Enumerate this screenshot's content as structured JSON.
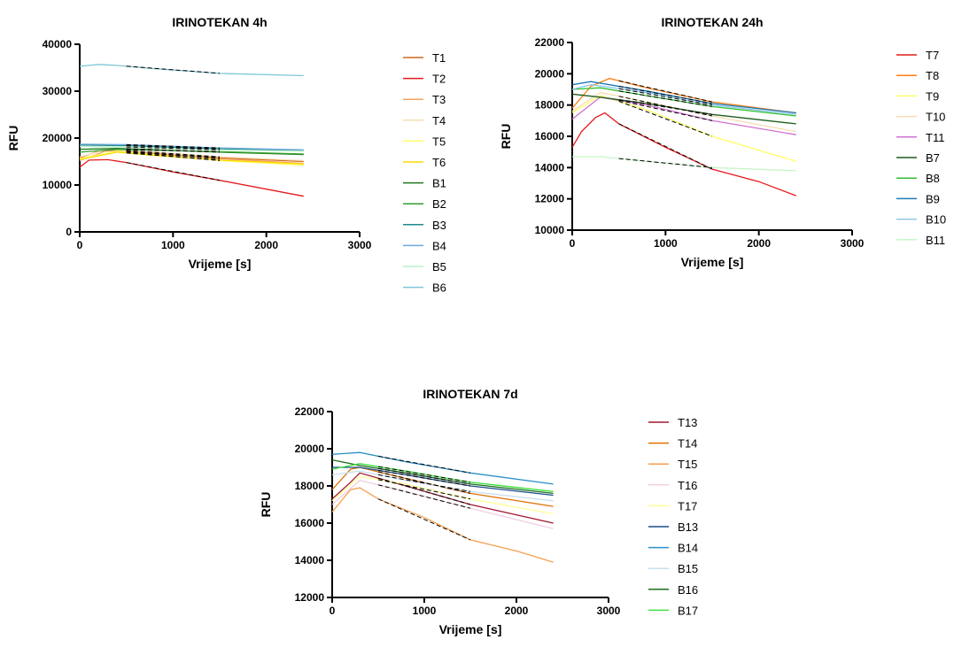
{
  "chart_data": [
    {
      "type": "line",
      "title": "IRINOTEKAN 4h",
      "xlabel": "Vrijeme [s]",
      "ylabel": "RFU",
      "xlim": [
        0,
        3000
      ],
      "ylim": [
        0,
        40000
      ],
      "xticks": [
        "0",
        "1000",
        "2000",
        "3000"
      ],
      "yticks": [
        "0",
        "10000",
        "20000",
        "30000",
        "40000"
      ],
      "legend_position": "right",
      "series": [
        {
          "name": "T1",
          "color": "#d2691e",
          "values": [
            [
              0,
              15800
            ],
            [
              200,
              17200
            ],
            [
              400,
              17300
            ],
            [
              800,
              16600
            ],
            [
              1500,
              15800
            ],
            [
              2400,
              15000
            ]
          ],
          "fit": [
            500,
            1500
          ]
        },
        {
          "name": "T2",
          "color": "#e41a1c",
          "values": [
            [
              0,
              13800
            ],
            [
              100,
              15300
            ],
            [
              300,
              15400
            ],
            [
              500,
              14800
            ],
            [
              1000,
              12800
            ],
            [
              1500,
              11000
            ],
            [
              2400,
              7600
            ]
          ],
          "fit": [
            500,
            1500
          ]
        },
        {
          "name": "T3",
          "color": "#f4a460",
          "values": [
            [
              0,
              15200
            ],
            [
              300,
              17400
            ],
            [
              800,
              16800
            ],
            [
              1500,
              15600
            ],
            [
              2400,
              14600
            ]
          ],
          "fit": [
            500,
            1500
          ]
        },
        {
          "name": "T4",
          "color": "#f5deb3",
          "values": [
            [
              0,
              16000
            ],
            [
              300,
              17600
            ],
            [
              800,
              17000
            ],
            [
              1500,
              16000
            ],
            [
              2400,
              15200
            ]
          ],
          "fit": [
            500,
            1500
          ]
        },
        {
          "name": "T5",
          "color": "#ffff66",
          "values": [
            [
              0,
              15600
            ],
            [
              400,
              17200
            ],
            [
              800,
              16500
            ],
            [
              1500,
              15200
            ],
            [
              2400,
              14200
            ]
          ],
          "fit": [
            500,
            1500
          ]
        },
        {
          "name": "T6",
          "color": "#ffd700",
          "values": [
            [
              0,
              15400
            ],
            [
              400,
              17000
            ],
            [
              800,
              16300
            ],
            [
              1500,
              15300
            ],
            [
              2400,
              14500
            ]
          ],
          "fit": [
            500,
            1500
          ]
        },
        {
          "name": "B1",
          "color": "#1b7a1b",
          "values": [
            [
              0,
              17600
            ],
            [
              400,
              17800
            ],
            [
              1500,
              17000
            ],
            [
              2400,
              16500
            ]
          ],
          "fit": [
            500,
            1500
          ]
        },
        {
          "name": "B2",
          "color": "#33a02c",
          "values": [
            [
              0,
              17000
            ],
            [
              400,
              17600
            ],
            [
              1500,
              17100
            ],
            [
              2400,
              16600
            ]
          ],
          "fit": [
            500,
            1500
          ]
        },
        {
          "name": "B3",
          "color": "#1f8a8a",
          "values": [
            [
              0,
              18500
            ],
            [
              500,
              18400
            ],
            [
              1500,
              17700
            ],
            [
              2400,
              17300
            ]
          ],
          "fit": [
            500,
            1500
          ]
        },
        {
          "name": "B4",
          "color": "#6fa8dc",
          "values": [
            [
              0,
              18700
            ],
            [
              500,
              18600
            ],
            [
              1500,
              17900
            ],
            [
              2400,
              17500
            ]
          ],
          "fit": [
            500,
            1500
          ]
        },
        {
          "name": "B5",
          "color": "#b8f0c8",
          "values": [
            [
              0,
              18200
            ],
            [
              500,
              18100
            ],
            [
              1500,
              17500
            ],
            [
              2400,
              17200
            ]
          ],
          "fit": [
            500,
            1500
          ]
        },
        {
          "name": "B6",
          "color": "#7fc8d8",
          "values": [
            [
              0,
              35300
            ],
            [
              200,
              35700
            ],
            [
              400,
              35500
            ],
            [
              800,
              34800
            ],
            [
              1500,
              33800
            ],
            [
              2400,
              33300
            ]
          ],
          "fit": [
            500,
            1500
          ]
        }
      ]
    },
    {
      "type": "line",
      "title": "IRINOTEKAN 24h",
      "xlabel": "Vrijeme [s]",
      "ylabel": "RFU",
      "xlim": [
        0,
        3000
      ],
      "ylim": [
        10000,
        22000
      ],
      "xticks": [
        "0",
        "1000",
        "2000",
        "3000"
      ],
      "yticks": [
        "10000",
        "12000",
        "14000",
        "16000",
        "18000",
        "20000",
        "22000"
      ],
      "legend_position": "right",
      "series": [
        {
          "name": "T7",
          "color": "#e41a1c",
          "values": [
            [
              0,
              15300
            ],
            [
              100,
              16300
            ],
            [
              250,
              17200
            ],
            [
              350,
              17500
            ],
            [
              500,
              16800
            ],
            [
              1000,
              15300
            ],
            [
              1500,
              13900
            ],
            [
              2000,
              13100
            ],
            [
              2400,
              12200
            ]
          ],
          "fit": [
            500,
            1500
          ]
        },
        {
          "name": "T8",
          "color": "#ff7f0e",
          "values": [
            [
              0,
              17800
            ],
            [
              200,
              19200
            ],
            [
              400,
              19700
            ],
            [
              800,
              19100
            ],
            [
              1500,
              18200
            ],
            [
              2400,
              17500
            ]
          ],
          "fit": [
            500,
            1500
          ]
        },
        {
          "name": "T9",
          "color": "#ffff66",
          "values": [
            [
              0,
              17500
            ],
            [
              300,
              18600
            ],
            [
              800,
              17700
            ],
            [
              1500,
              16000
            ],
            [
              2400,
              14400
            ]
          ],
          "fit": [
            500,
            1500
          ]
        },
        {
          "name": "T10",
          "color": "#f5deb3",
          "values": [
            [
              0,
              17600
            ],
            [
              300,
              18800
            ],
            [
              800,
              18200
            ],
            [
              1500,
              17300
            ],
            [
              2400,
              16300
            ]
          ],
          "fit": [
            500,
            1500
          ]
        },
        {
          "name": "T11",
          "color": "#d070d0",
          "values": [
            [
              0,
              17100
            ],
            [
              300,
              18500
            ],
            [
              800,
              18000
            ],
            [
              1500,
              17000
            ],
            [
              2400,
              16100
            ]
          ],
          "fit": [
            500,
            1500
          ]
        },
        {
          "name": "B7",
          "color": "#1b5e1b",
          "values": [
            [
              0,
              18700
            ],
            [
              300,
              18500
            ],
            [
              800,
              18100
            ],
            [
              1500,
              17400
            ],
            [
              2400,
              16800
            ]
          ],
          "fit": [
            500,
            1500
          ]
        },
        {
          "name": "B8",
          "color": "#33c033",
          "values": [
            [
              0,
              19000
            ],
            [
              300,
              19100
            ],
            [
              800,
              18600
            ],
            [
              1500,
              17900
            ],
            [
              2400,
              17300
            ]
          ],
          "fit": [
            500,
            1500
          ]
        },
        {
          "name": "B9",
          "color": "#1f77b4",
          "values": [
            [
              0,
              19300
            ],
            [
              200,
              19500
            ],
            [
              800,
              18900
            ],
            [
              1500,
              18100
            ],
            [
              2400,
              17500
            ]
          ],
          "fit": [
            500,
            1500
          ]
        },
        {
          "name": "B10",
          "color": "#8cc8e8",
          "values": [
            [
              0,
              19000
            ],
            [
              200,
              19300
            ],
            [
              800,
              18800
            ],
            [
              1500,
              18000
            ],
            [
              2400,
              17400
            ]
          ],
          "fit": [
            500,
            1500
          ]
        },
        {
          "name": "B11",
          "color": "#c8f5c8",
          "values": [
            [
              0,
              14700
            ],
            [
              300,
              14700
            ],
            [
              800,
              14400
            ],
            [
              1500,
              14000
            ],
            [
              2400,
              13800
            ]
          ],
          "fit": [
            500,
            1500
          ]
        }
      ]
    },
    {
      "type": "line",
      "title": "IRINOTEKAN 7d",
      "xlabel": "Vrijeme [s]",
      "ylabel": "RFU",
      "xlim": [
        0,
        3000
      ],
      "ylim": [
        12000,
        22000
      ],
      "xticks": [
        "0",
        "1000",
        "2000",
        "3000"
      ],
      "yticks": [
        "12000",
        "14000",
        "16000",
        "18000",
        "20000",
        "22000"
      ],
      "legend_position": "right",
      "series": [
        {
          "name": "T13",
          "color": "#a01830",
          "values": [
            [
              0,
              17300
            ],
            [
              200,
              18200
            ],
            [
              300,
              18700
            ],
            [
              800,
              18000
            ],
            [
              1500,
              17000
            ],
            [
              2400,
              16000
            ]
          ],
          "fit": [
            500,
            1500
          ]
        },
        {
          "name": "T14",
          "color": "#e07000",
          "values": [
            [
              0,
              17800
            ],
            [
              200,
              18900
            ],
            [
              300,
              19000
            ],
            [
              800,
              18400
            ],
            [
              1500,
              17600
            ],
            [
              2400,
              16900
            ]
          ],
          "fit": [
            500,
            1500
          ]
        },
        {
          "name": "T15",
          "color": "#f5a050",
          "values": [
            [
              0,
              16600
            ],
            [
              200,
              17800
            ],
            [
              300,
              17900
            ],
            [
              500,
              17300
            ],
            [
              1000,
              16300
            ],
            [
              1500,
              15100
            ],
            [
              2000,
              14500
            ],
            [
              2400,
              13900
            ]
          ],
          "fit": [
            500,
            1500
          ]
        },
        {
          "name": "T16",
          "color": "#f0d0e0",
          "values": [
            [
              0,
              17000
            ],
            [
              300,
              18300
            ],
            [
              800,
              17700
            ],
            [
              1500,
              16800
            ],
            [
              2400,
              15700
            ]
          ],
          "fit": [
            500,
            1500
          ]
        },
        {
          "name": "T17",
          "color": "#ffff99",
          "values": [
            [
              0,
              17200
            ],
            [
              300,
              18500
            ],
            [
              800,
              18100
            ],
            [
              1500,
              17300
            ],
            [
              2400,
              16500
            ]
          ],
          "fit": [
            500,
            1500
          ]
        },
        {
          "name": "B13",
          "color": "#1a4d8c",
          "values": [
            [
              0,
              19000
            ],
            [
              300,
              19000
            ],
            [
              800,
              18600
            ],
            [
              1500,
              18000
            ],
            [
              2400,
              17500
            ]
          ],
          "fit": [
            500,
            1500
          ]
        },
        {
          "name": "B14",
          "color": "#2a8fc8",
          "values": [
            [
              0,
              19700
            ],
            [
              300,
              19800
            ],
            [
              800,
              19300
            ],
            [
              1500,
              18700
            ],
            [
              2400,
              18100
            ]
          ],
          "fit": [
            500,
            1500
          ]
        },
        {
          "name": "B15",
          "color": "#c8e0f0",
          "values": [
            [
              0,
              18600
            ],
            [
              300,
              18800
            ],
            [
              800,
              18300
            ],
            [
              1500,
              17700
            ],
            [
              2400,
              17200
            ]
          ],
          "fit": [
            500,
            1500
          ]
        },
        {
          "name": "B16",
          "color": "#1b6e1b",
          "values": [
            [
              0,
              19400
            ],
            [
              300,
              19100
            ],
            [
              800,
              18700
            ],
            [
              1500,
              18100
            ],
            [
              2400,
              17600
            ]
          ],
          "fit": [
            500,
            1500
          ]
        },
        {
          "name": "B17",
          "color": "#40e040",
          "values": [
            [
              0,
              18900
            ],
            [
              300,
              19200
            ],
            [
              800,
              18800
            ],
            [
              1500,
              18200
            ],
            [
              2400,
              17700
            ]
          ],
          "fit": [
            500,
            1500
          ]
        }
      ]
    }
  ]
}
